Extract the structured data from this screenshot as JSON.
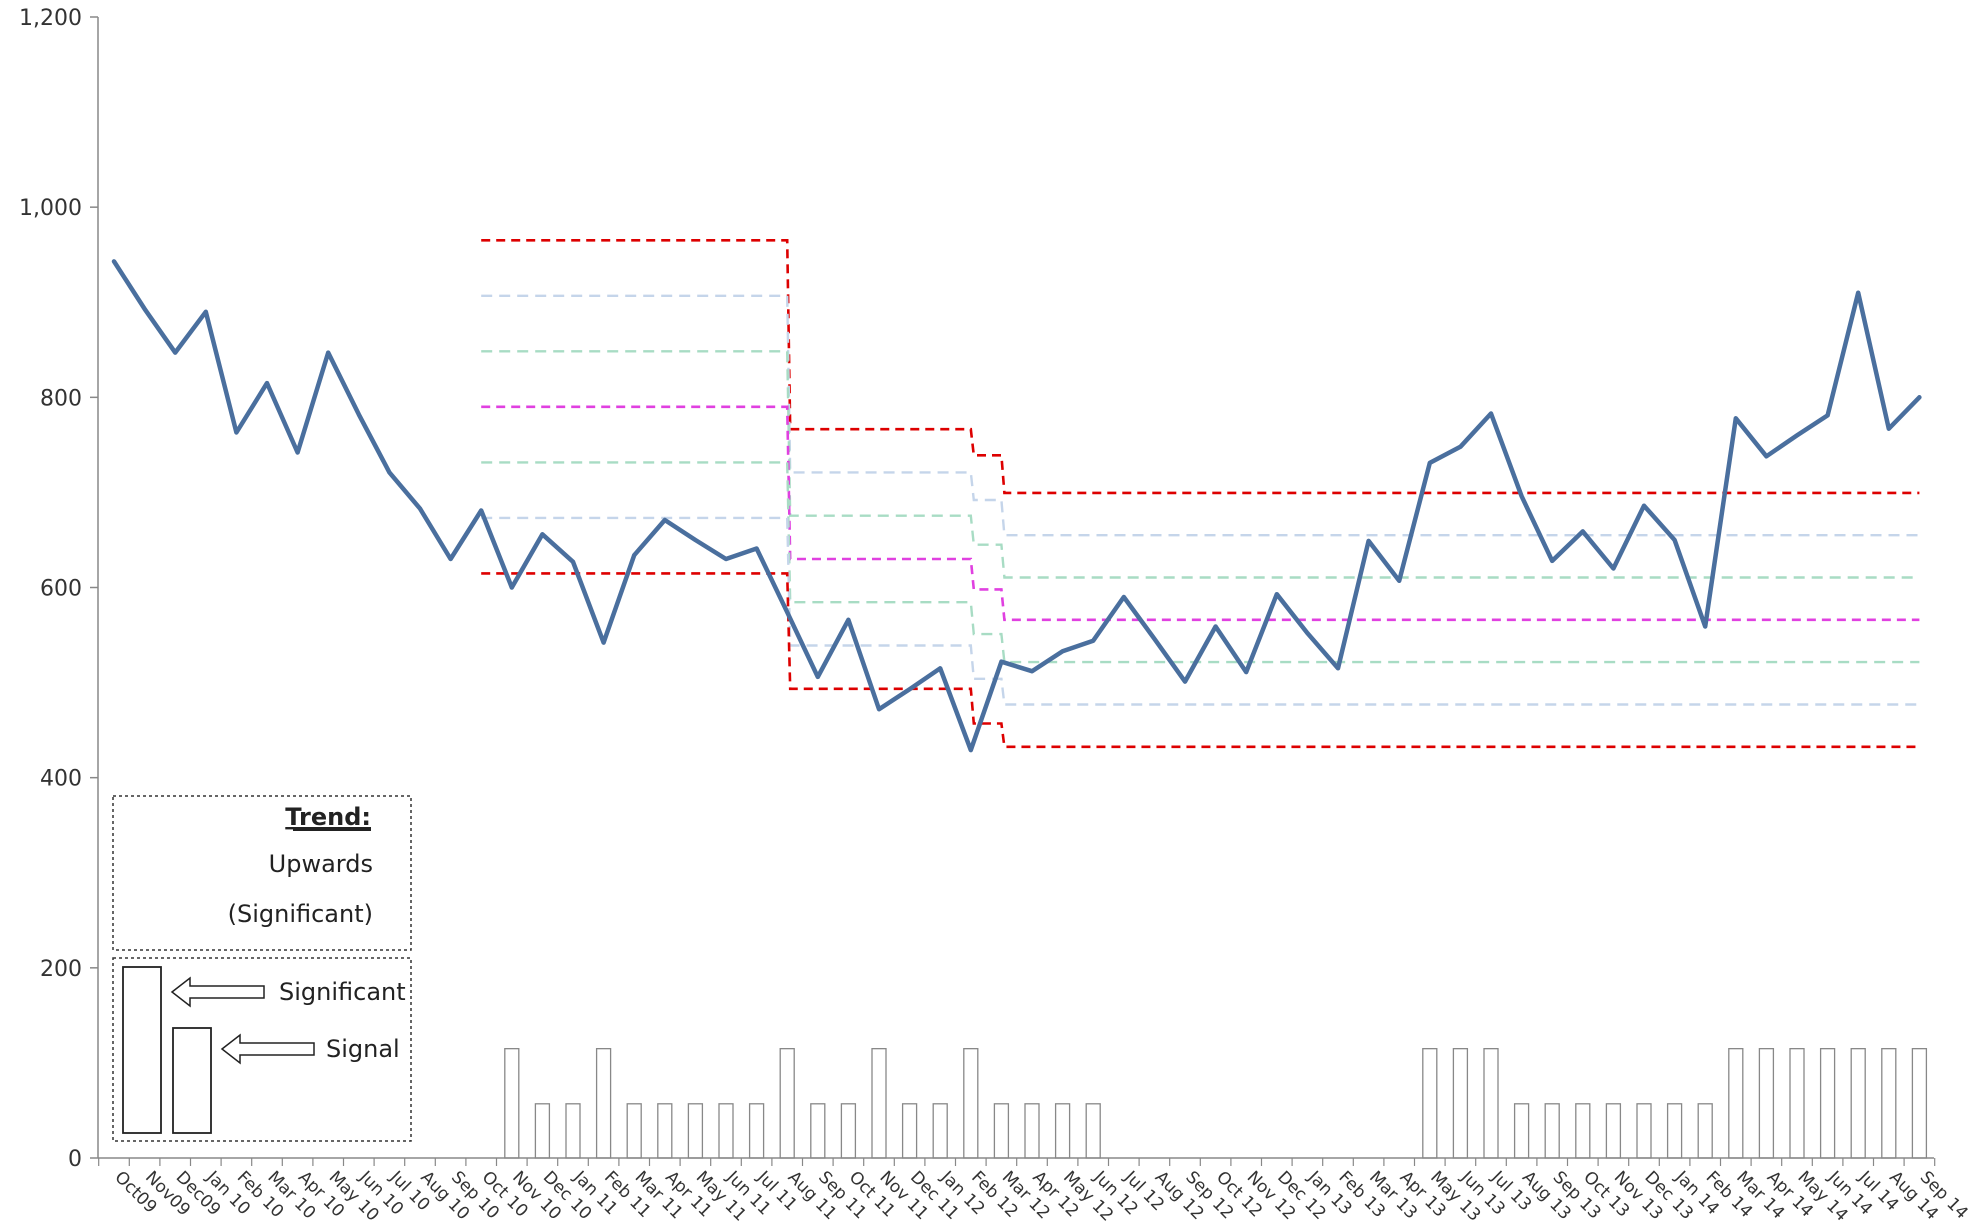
{
  "chart_data": {
    "type": "line",
    "title": "",
    "xlabel": "",
    "ylabel": "",
    "ylim": [
      0,
      1200
    ],
    "yticks": [
      0,
      200,
      400,
      600,
      800,
      1000,
      1200
    ],
    "ytick_labels": [
      "0",
      "200",
      "400",
      "600",
      "800",
      "1,000",
      "1,200"
    ],
    "grid": false,
    "categories": [
      "Oct09",
      "Nov09",
      "Dec09",
      "Jan 10",
      "Feb 10",
      "Mar 10",
      "Apr 10",
      "May 10",
      "Jun 10",
      "Jul 10",
      "Aug 10",
      "Sep 10",
      "Oct 10",
      "Nov 10",
      "Dec 10",
      "Jan 11",
      "Feb 11",
      "Mar 11",
      "Apr 11",
      "May 11",
      "Jun 11",
      "Jul 11",
      "Aug 11",
      "Sep 11",
      "Oct 11",
      "Nov 11",
      "Dec 11",
      "Jan 12",
      "Feb 12",
      "Mar 12",
      "Apr 12",
      "May 12",
      "Jun 12",
      "Jul 12",
      "Aug 12",
      "Sep 12",
      "Oct 12",
      "Nov 12",
      "Dec 12",
      "Jan 13",
      "Feb 13",
      "Mar 13",
      "Apr 13",
      "May 13",
      "Jun 13",
      "Jul 13",
      "Aug 13",
      "Sep 13",
      "Oct 13",
      "Nov 13",
      "Dec 13",
      "Jan 14",
      "Feb 14",
      "Mar 14",
      "Apr 14",
      "May 14",
      "Jun 14",
      "Jul 14",
      "Aug 14",
      "Sep 14"
    ],
    "series": [
      {
        "kind": "line",
        "color": "#4a6f9e",
        "values": [
          943,
          893,
          847,
          890,
          763,
          815,
          742,
          847,
          782,
          721,
          683,
          630,
          681,
          600,
          656,
          627,
          542,
          634,
          671,
          650,
          630,
          641,
          574,
          506,
          566,
          472,
          493,
          515,
          429,
          522,
          512,
          533,
          544,
          590,
          546,
          501,
          559,
          511,
          593,
          552,
          515,
          649,
          607,
          731,
          748,
          783,
          696,
          628,
          659,
          620,
          686,
          650,
          559,
          778,
          738,
          760,
          781,
          910,
          767,
          800
        ]
      },
      {
        "kind": "bars",
        "color": "#888888",
        "values": [
          0,
          0,
          0,
          0,
          0,
          0,
          0,
          0,
          0,
          0,
          0,
          0,
          0,
          115,
          57,
          57,
          115,
          57,
          57,
          57,
          57,
          57,
          115,
          57,
          57,
          115,
          57,
          57,
          115,
          57,
          57,
          57,
          57,
          0,
          0,
          0,
          0,
          0,
          0,
          0,
          0,
          0,
          0,
          115,
          115,
          115,
          57,
          57,
          57,
          57,
          57,
          57,
          57,
          115,
          115,
          115,
          115,
          115,
          115,
          115
        ]
      }
    ],
    "control_limits": {
      "segments": [
        {
          "start": 12,
          "end": 22,
          "mean": 790,
          "sigma": 58.4
        },
        {
          "start": 22,
          "end": 28,
          "mean": 630,
          "sigma": 45.5
        },
        {
          "start": 28,
          "end": 29,
          "mean": 598,
          "sigma": 47
        },
        {
          "start": 29,
          "end": 59,
          "mean": 566,
          "sigma": 44.5
        }
      ],
      "colors": {
        "limit_3sigma": "#dd0000",
        "sigma_2": "#c5d5ea",
        "sigma_1": "#a8dcc4",
        "mean": "#e040e0"
      }
    },
    "trend_legend": {
      "title": "Trend:",
      "lines": [
        "Upwards",
        "(Significant)"
      ]
    },
    "signal_legend": {
      "labels": [
        "Significant",
        "Signal"
      ]
    }
  }
}
